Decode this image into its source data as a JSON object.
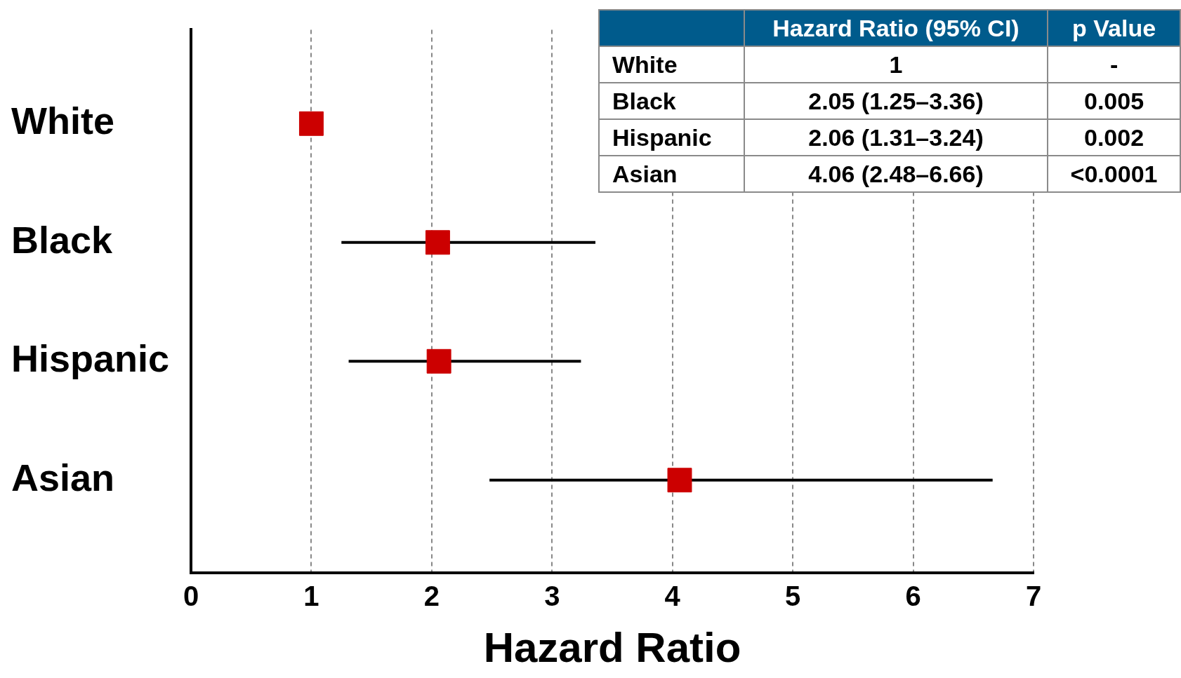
{
  "chart_data": [
    {
      "type": "scatter",
      "orientation": "horizontal",
      "xlabel": "Hazard Ratio",
      "categories": [
        "White",
        "Black",
        "Hispanic",
        "Asian"
      ],
      "series": [
        {
          "color": "#cc0000",
          "values": [
            1,
            2.05,
            2.06,
            4.06
          ],
          "errors": [
            null,
            [
              1.25,
              3.36
            ],
            [
              1.31,
              3.24
            ],
            [
              2.48,
              6.66
            ]
          ]
        }
      ],
      "xlim": [
        0,
        7
      ],
      "xticks": [
        0,
        1,
        2,
        3,
        4,
        5,
        6,
        7
      ],
      "grid": "x",
      "marker": "square",
      "legend": false
    },
    {
      "type": "other",
      "categories": [
        "Hazard Ratio (95% CI)",
        "p Value"
      ],
      "y_categories": [
        "White",
        "Black",
        "Hispanic",
        "Asian"
      ],
      "cell_labels": [
        [
          "1",
          "-"
        ],
        [
          "2.05 (1.25–3.36)",
          "0.005"
        ],
        [
          "2.06 (1.31–3.24)",
          "0.002"
        ],
        [
          "4.06 (2.48–6.66)",
          "<0.0001"
        ]
      ]
    }
  ]
}
